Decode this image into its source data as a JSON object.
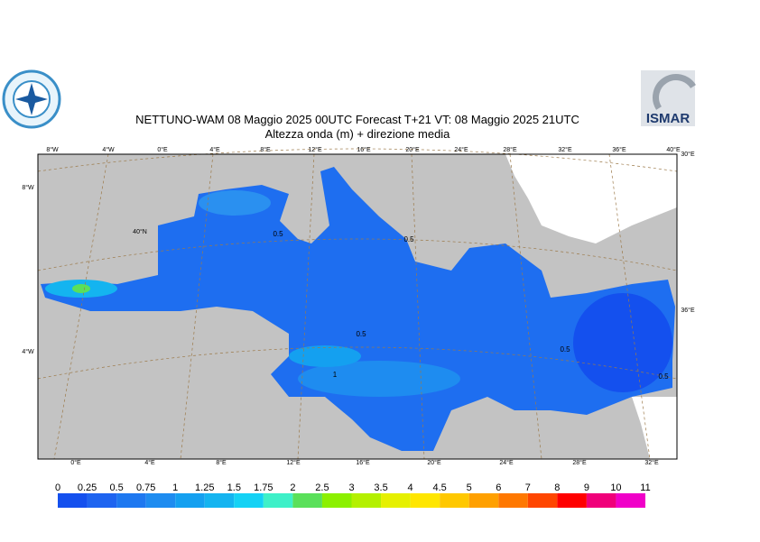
{
  "header": {
    "title": "NETTUNO-WAM  08   Maggio  2025 00UTC Forecast T+21 VT: 08   Maggio  2025 21UTC",
    "subtitle": "Altezza onda (m) + direzione media"
  },
  "logos": {
    "right": "ISMAR"
  },
  "map": {
    "top_labels": [
      "8°W",
      "4°W",
      "0°E",
      "4°E",
      "8°E",
      "12°E",
      "16°E",
      "20°E",
      "24°E",
      "28°E",
      "32°E",
      "36°E",
      "40°E"
    ],
    "bottom_labels": [
      "0°E",
      "4°E",
      "8°E",
      "12°E",
      "16°E",
      "20°E",
      "24°E",
      "28°E",
      "32°E"
    ],
    "left_labels": [
      "8°W",
      "40°N",
      "4°W"
    ],
    "right_labels": [
      "30°E",
      "36°E"
    ],
    "contour_labels": [
      "0.5",
      "0.5",
      "0.5",
      "1",
      "0.5",
      "0.5"
    ]
  },
  "colorbar": {
    "levels": [
      0,
      0.25,
      0.5,
      0.75,
      1,
      1.25,
      1.5,
      1.75,
      2,
      2.5,
      3,
      3.5,
      4,
      4.5,
      5,
      6,
      7,
      8,
      9,
      10,
      11
    ],
    "colors": [
      "#1450ee",
      "#1e64f0",
      "#1e78f0",
      "#1e8cf0",
      "#14a0f0",
      "#14b4f0",
      "#14d2f5",
      "#3ef0c8",
      "#5ae05a",
      "#8cf000",
      "#b4f000",
      "#e6f000",
      "#ffe600",
      "#ffc800",
      "#ffa000",
      "#ff7800",
      "#ff4600",
      "#ff0000",
      "#f0007a",
      "#f000c8"
    ]
  }
}
